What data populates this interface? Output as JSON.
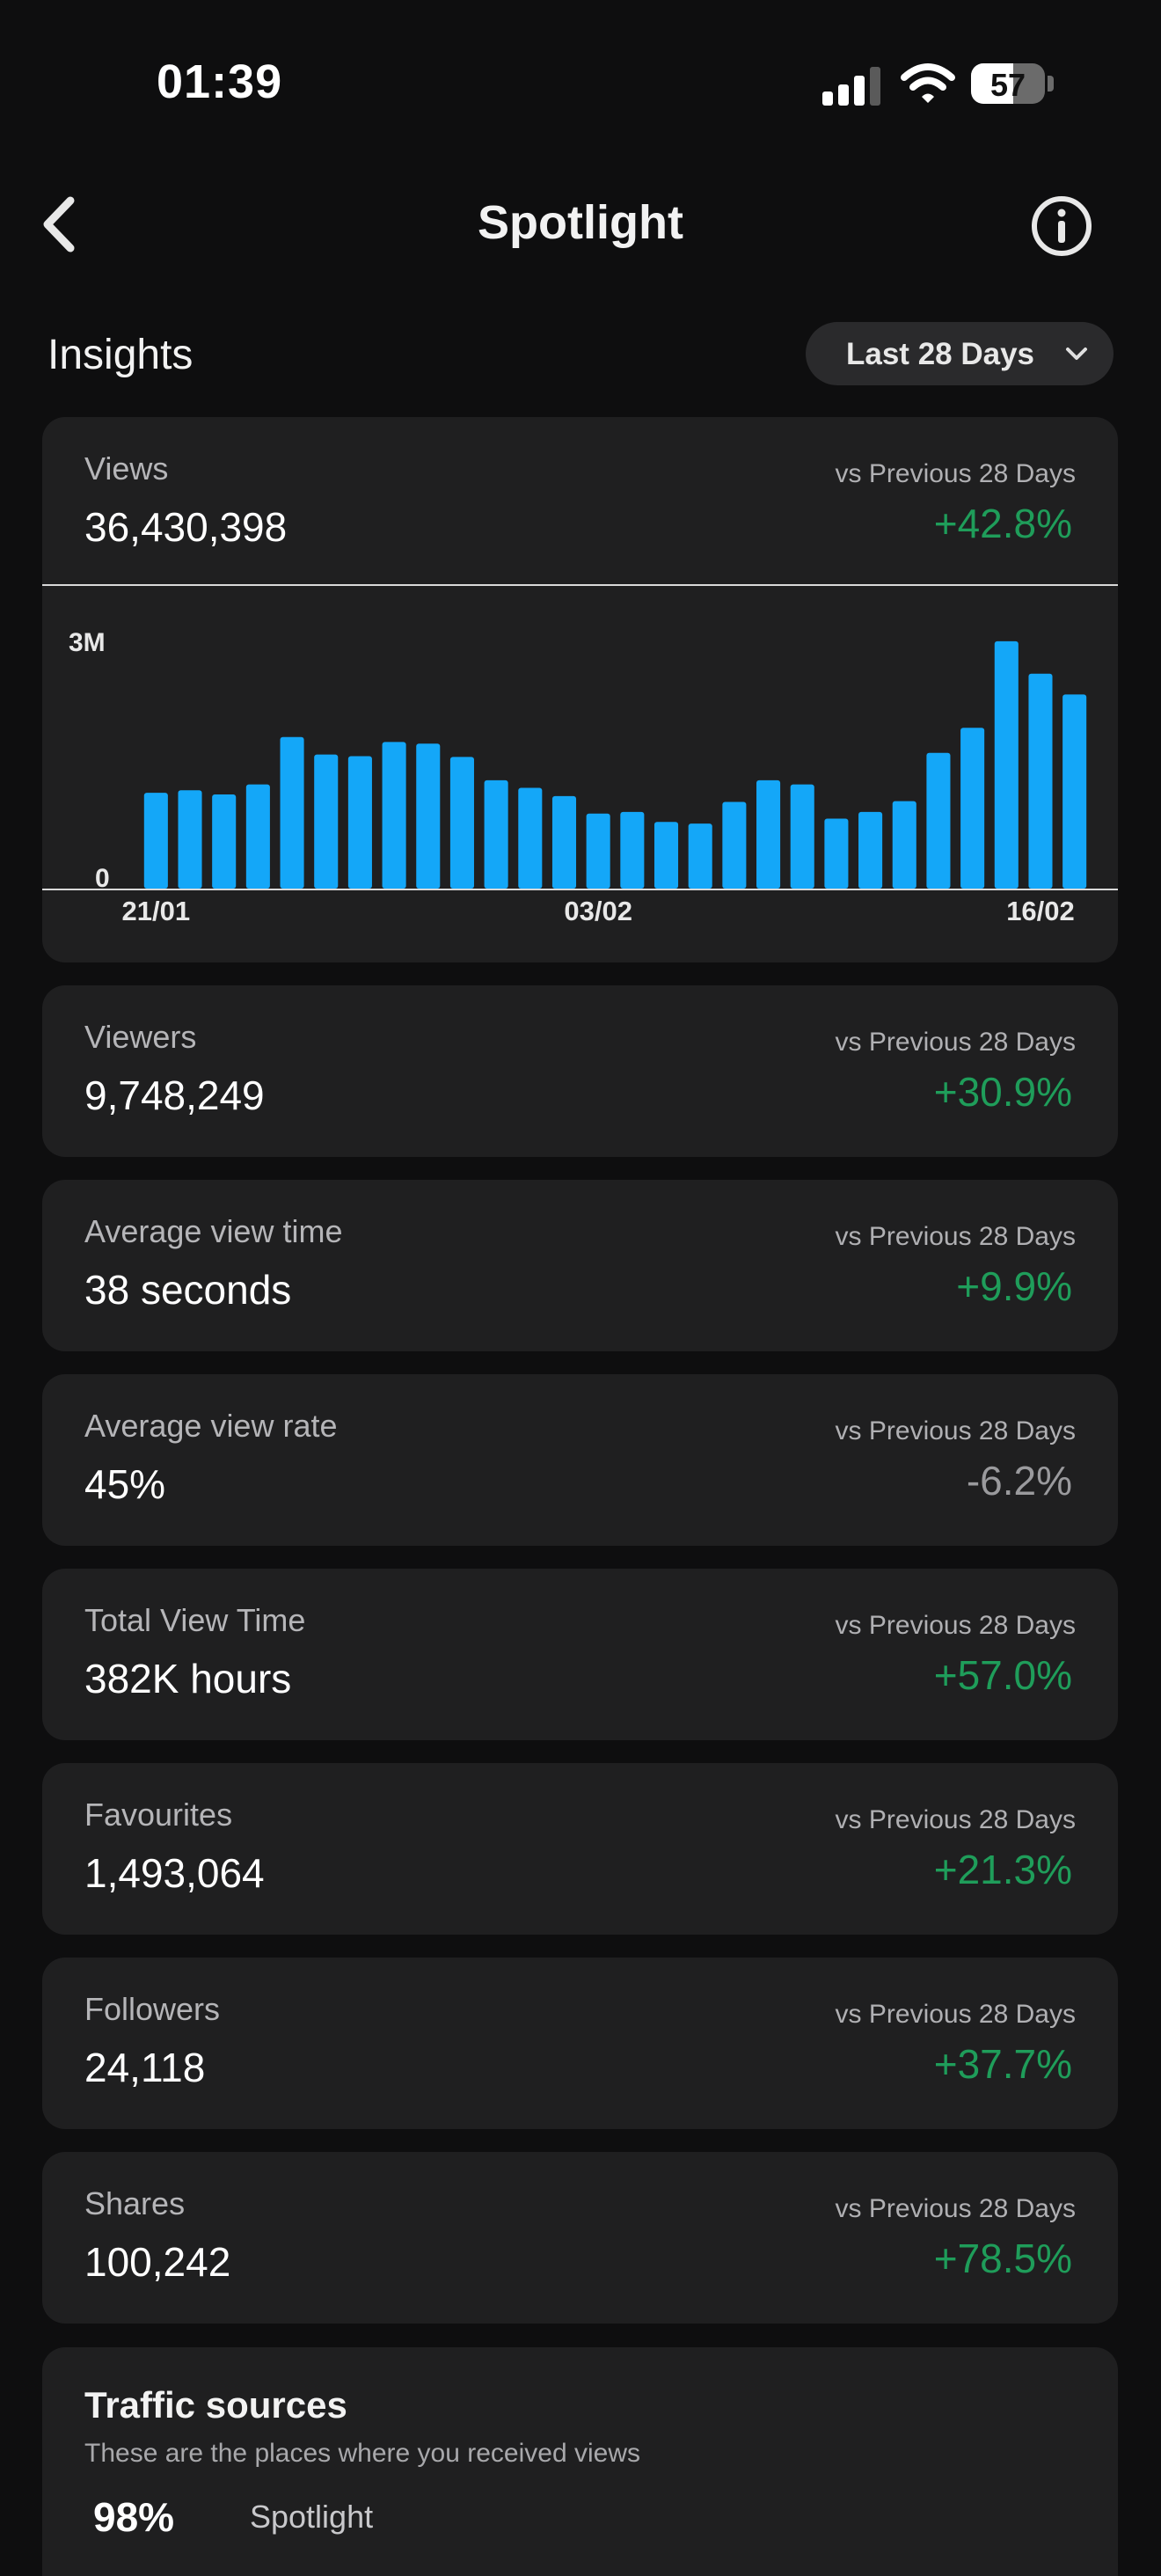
{
  "status": {
    "time": "01:39",
    "battery": "57",
    "battery_level": 0.57,
    "icons": [
      "signal-icon",
      "wifi-icon",
      "battery-icon"
    ]
  },
  "nav": {
    "title": "Spotlight",
    "icons": [
      "back-chevron-icon",
      "info-icon"
    ]
  },
  "insights": {
    "title": "Insights",
    "range": "Last 28 Days"
  },
  "metrics": [
    {
      "label": "Views",
      "value": "36,430,398",
      "vs": "vs Previous 28 Days",
      "change": "+42.8%",
      "trend": "up"
    },
    {
      "label": "Viewers",
      "value": "9,748,249",
      "vs": "vs Previous 28 Days",
      "change": "+30.9%",
      "trend": "up"
    },
    {
      "label": "Average view time",
      "value": "38 seconds",
      "vs": "vs Previous 28 Days",
      "change": "+9.9%",
      "trend": "up"
    },
    {
      "label": "Average view rate",
      "value": "45%",
      "vs": "vs Previous 28 Days",
      "change": "-6.2%",
      "trend": "down"
    },
    {
      "label": "Total View Time",
      "value": "382K hours",
      "vs": "vs Previous 28 Days",
      "change": "+57.0%",
      "trend": "up"
    },
    {
      "label": "Favourites",
      "value": "1,493,064",
      "vs": "vs Previous 28 Days",
      "change": "+21.3%",
      "trend": "up"
    },
    {
      "label": "Followers",
      "value": "24,118",
      "vs": "vs Previous 28 Days",
      "change": "+37.7%",
      "trend": "up"
    },
    {
      "label": "Shares",
      "value": "100,242",
      "vs": "vs Previous 28 Days",
      "change": "+78.5%",
      "trend": "up"
    }
  ],
  "chart_data": {
    "type": "bar",
    "title": "",
    "xlabel": "",
    "ylabel": "",
    "ylim": [
      0,
      3000000
    ],
    "y_ticks": [
      "0",
      "3M"
    ],
    "x_tick_labels": [
      "21/01",
      "03/02",
      "16/02"
    ],
    "values": [
      1150000,
      1180000,
      1130000,
      1250000,
      1820000,
      1610000,
      1590000,
      1760000,
      1740000,
      1580000,
      1300000,
      1210000,
      1110000,
      900000,
      920000,
      800000,
      780000,
      1040000,
      1300000,
      1250000,
      840000,
      920000,
      1050000,
      1630000,
      1930000,
      2970000,
      2580000,
      2330000
    ],
    "bar_color": "#14a7f8",
    "grid": false
  },
  "traffic": {
    "title": "Traffic sources",
    "subtitle": "These are the places where you received views",
    "top_pct": "98%",
    "top_source": "Spotlight"
  },
  "colors": {
    "background": "#0e0e0f",
    "card": "#1f1f20",
    "positive": "#1f9d5a",
    "negative": "#9a9a9d",
    "bar": "#14a7f8"
  }
}
